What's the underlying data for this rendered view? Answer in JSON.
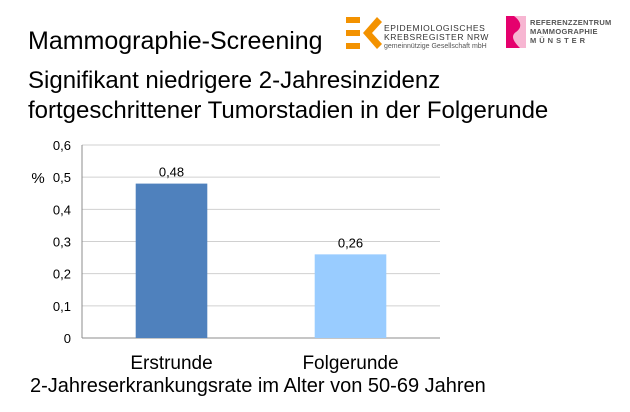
{
  "slide": {
    "title": "Mammographie-Screening",
    "headline_line1": "Signifikant niedrigere 2-Jahresinzidenz",
    "headline_line2": "fortgeschrittener Tumorstadien in der Folgerunde",
    "caption": "2-Jahreserkrankungsrate im Alter von 50-69 Jahren"
  },
  "logos": {
    "ekr": {
      "line1": "EPIDEMIOLOGISCHES",
      "line2": "KREBSREGISTER NRW",
      "line3": "gemeinnützige Gesellschaft mbH",
      "color": "#f39200"
    },
    "referenzzentrum": {
      "line1": "REFERENZZENTRUM",
      "line2": "MAMMOGRAPHIE",
      "line3": "MÜNSTER",
      "color": "#e5006d"
    }
  },
  "chart_data": {
    "type": "bar",
    "categories": [
      "Erstrunde",
      "Folgerunde"
    ],
    "values": [
      0.48,
      0.26
    ],
    "value_labels": [
      "0,48",
      "0,26"
    ],
    "bar_colors": [
      "#4f81bd",
      "#99ccff"
    ],
    "ylabel": "%",
    "ylim": [
      0,
      0.6
    ],
    "yticks": [
      0,
      0.1,
      0.2,
      0.3,
      0.4,
      0.5,
      0.6
    ],
    "ytick_labels": [
      "0",
      "0,1",
      "0,2",
      "0,3",
      "0,4",
      "0,5",
      "0,6"
    ],
    "grid": true,
    "legend": "none"
  }
}
